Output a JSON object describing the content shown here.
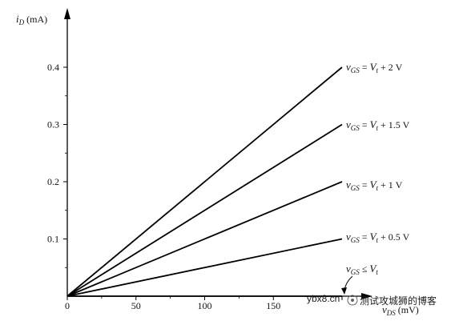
{
  "chart_data": {
    "type": "line",
    "title": "",
    "xlabel": "v_DS (mV)",
    "ylabel": "i_D (mA)",
    "xlim": [
      0,
      200
    ],
    "ylim": [
      0,
      0.4
    ],
    "xticks": [
      0,
      50,
      100,
      150,
      200
    ],
    "yticks": [
      0.1,
      0.2,
      0.3,
      0.4
    ],
    "xtick_labels": [
      "0",
      "50",
      "100",
      "150",
      "200"
    ],
    "ytick_labels": [
      "0.1",
      "0.2",
      "0.3",
      "0.4"
    ],
    "grid": false,
    "legend": "none",
    "series": [
      {
        "name": "vGS = Vt + 2 V",
        "x": [
          0,
          200
        ],
        "y": [
          0,
          0.4
        ]
      },
      {
        "name": "vGS = Vt + 1.5 V",
        "x": [
          0,
          200
        ],
        "y": [
          0,
          0.3
        ]
      },
      {
        "name": "vGS = Vt + 1 V",
        "x": [
          0,
          200
        ],
        "y": [
          0,
          0.2
        ]
      },
      {
        "name": "vGS = Vt + 0.5 V",
        "x": [
          0,
          200
        ],
        "y": [
          0,
          0.1
        ]
      },
      {
        "name": "vGS ≤ Vt",
        "x": [
          0,
          200
        ],
        "y": [
          0,
          0
        ]
      }
    ]
  },
  "watermark": {
    "text": "ybx8.cn",
    "text_cn": "测试攻城狮的博客"
  }
}
